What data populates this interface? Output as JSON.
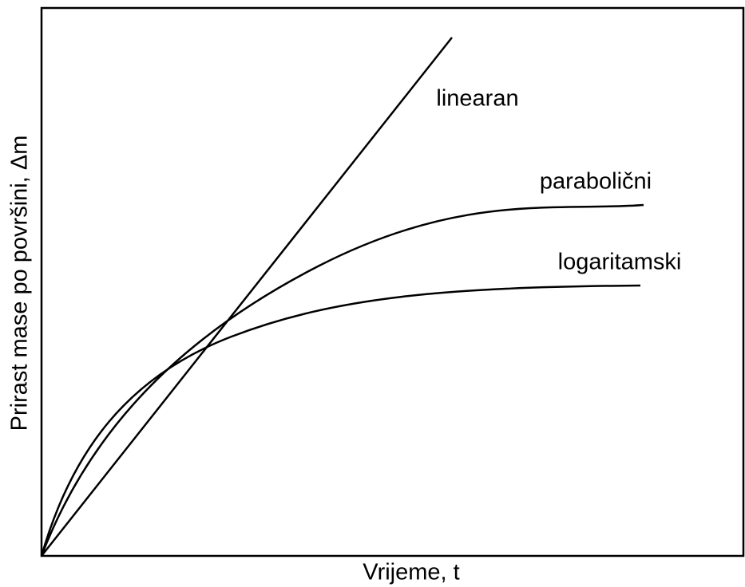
{
  "axes": {
    "x_label": "Vrijeme, t",
    "y_label": "Prirast mase po površini, Δm"
  },
  "curves": [
    {
      "label": "linearan"
    },
    {
      "label": "parabolični"
    },
    {
      "label": "logaritamski"
    }
  ]
}
